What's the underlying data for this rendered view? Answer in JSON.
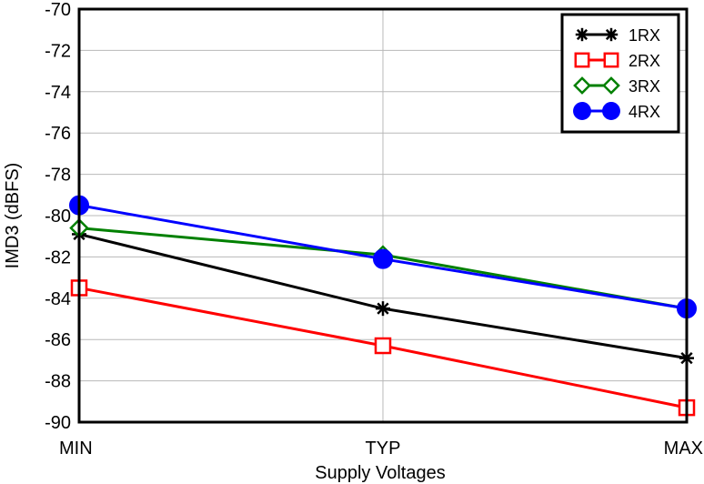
{
  "chart_data": {
    "type": "line",
    "categories": [
      "MIN",
      "TYP",
      "MAX"
    ],
    "xlabel": "Supply Voltages",
    "ylabel": "IMD3 (dBFS)",
    "ylim": [
      -90,
      -70
    ],
    "yticks": [
      -70,
      -72,
      -74,
      -76,
      -78,
      -80,
      -82,
      -84,
      -86,
      -88,
      -90
    ],
    "grid": true,
    "legend_position": "top-right",
    "series": [
      {
        "name": "1RX",
        "values": [
          -80.9,
          -84.5,
          -86.9
        ],
        "color": "#000000",
        "marker": "asterisk"
      },
      {
        "name": "2RX",
        "values": [
          -83.5,
          -86.3,
          -89.3
        ],
        "color": "#ff0000",
        "marker": "square-open"
      },
      {
        "name": "3RX",
        "values": [
          -80.6,
          -81.9,
          -84.5
        ],
        "color": "#008000",
        "marker": "diamond-open"
      },
      {
        "name": "4RX",
        "values": [
          -79.5,
          -82.1,
          -84.5
        ],
        "color": "#0000ff",
        "marker": "circle-filled"
      }
    ]
  }
}
